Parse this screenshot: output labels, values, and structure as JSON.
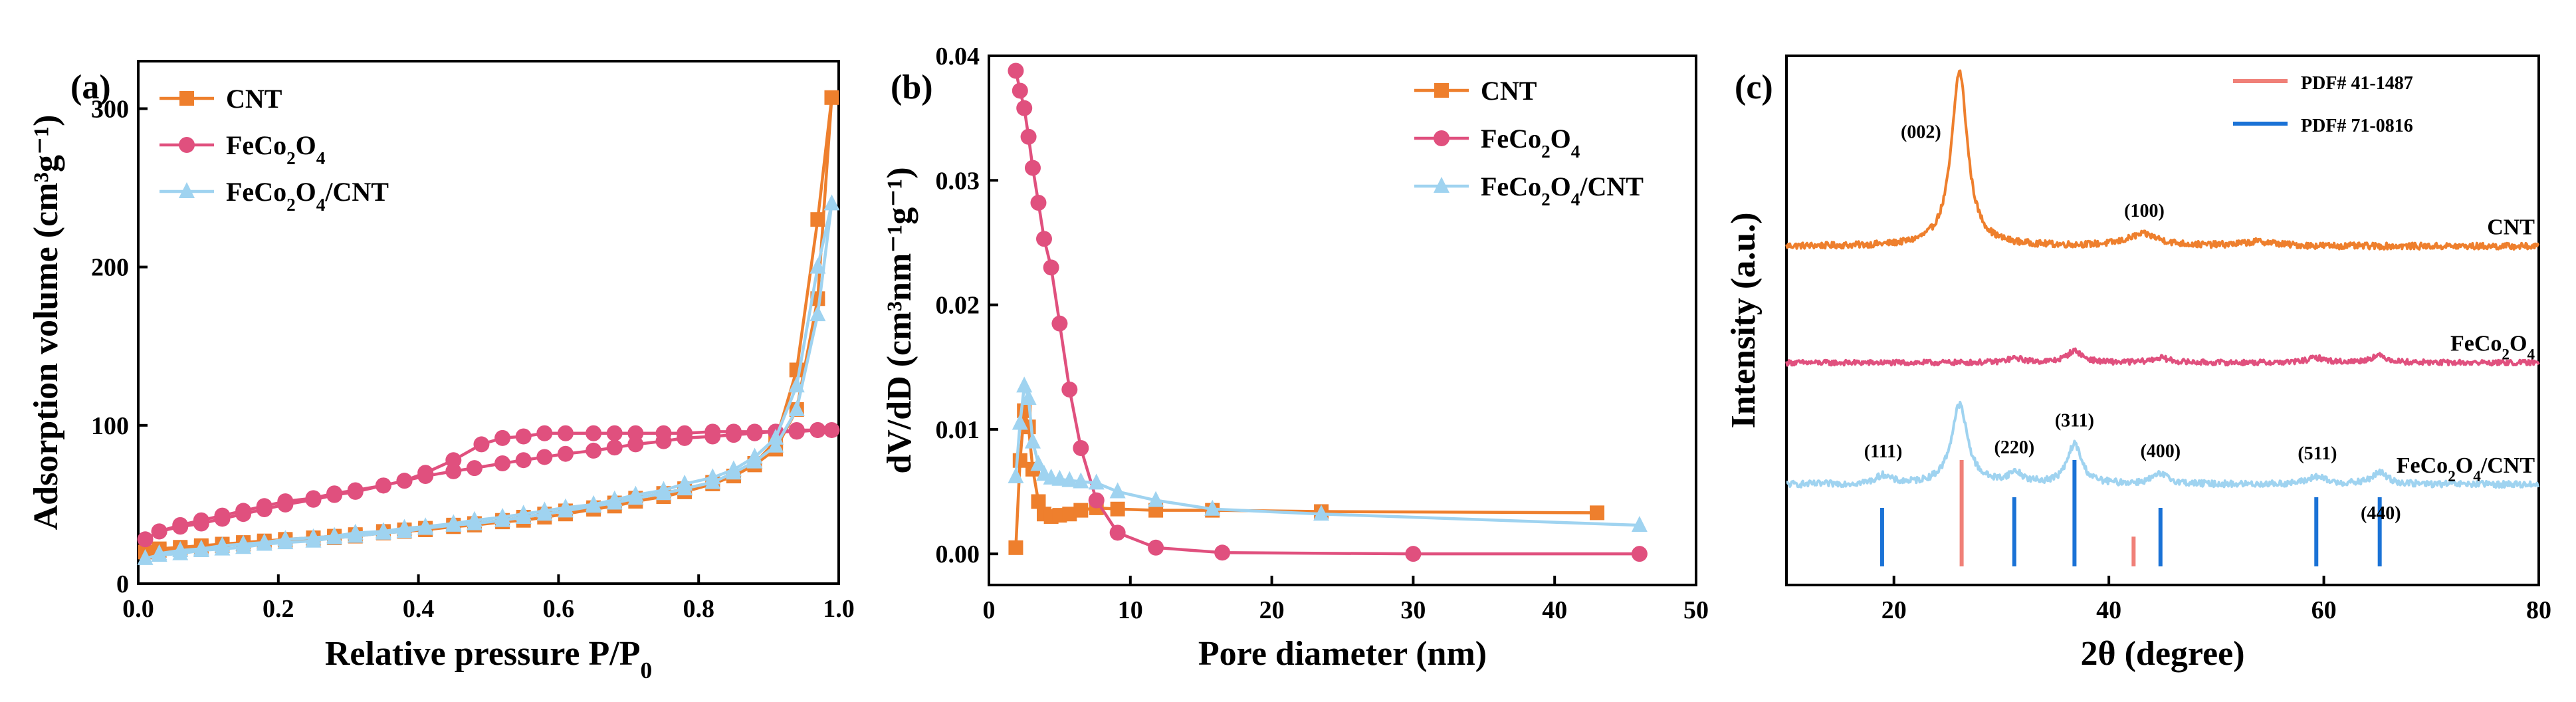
{
  "colors": {
    "cnt": "#ee7f2d",
    "fe": "#e0507e",
    "comp": "#9fd3f0",
    "pdf1": "#f08078",
    "pdf2": "#1a72d6"
  },
  "chart_data": [
    {
      "panel": "(a)",
      "type": "line",
      "xlabel_main": "Relative pressure P/P",
      "xlabel_sub": "0",
      "ylabel": "Adsorption volume (cm³g⁻¹)",
      "xlim": [
        0,
        1.0
      ],
      "ylim": [
        0,
        330
      ],
      "xticks": [
        0.0,
        0.2,
        0.4,
        0.6,
        0.8,
        1.0
      ],
      "xtick_labels": [
        "0.0",
        "0.2",
        "0.4",
        "0.6",
        "0.8",
        "1.0"
      ],
      "yticks": [
        0,
        100,
        200,
        300
      ],
      "ytick_labels": [
        "0",
        "100",
        "200",
        "300"
      ],
      "legend": {
        "position": "top-left",
        "entries": [
          {
            "key": "cnt",
            "main": "CNT",
            "parts": [
              {
                "t": "CNT",
                "sub": false
              }
            ]
          },
          {
            "key": "fe",
            "main": "FeCo2O4",
            "parts": [
              {
                "t": "FeCo",
                "sub": false
              },
              {
                "t": "2",
                "sub": true
              },
              {
                "t": "O",
                "sub": false
              },
              {
                "t": "4",
                "sub": true
              }
            ]
          },
          {
            "key": "comp",
            "main": "FeCo2O4/CNT",
            "parts": [
              {
                "t": "FeCo",
                "sub": false
              },
              {
                "t": "2",
                "sub": true
              },
              {
                "t": "O",
                "sub": false
              },
              {
                "t": "4",
                "sub": true
              },
              {
                "t": "/CNT",
                "sub": false
              }
            ]
          }
        ]
      },
      "series": [
        {
          "key": "cnt",
          "name": "CNT",
          "marker": "square",
          "x": [
            0.01,
            0.03,
            0.06,
            0.09,
            0.12,
            0.15,
            0.18,
            0.21,
            0.25,
            0.28,
            0.31,
            0.35,
            0.38,
            0.41,
            0.45,
            0.48,
            0.52,
            0.55,
            0.58,
            0.61,
            0.65,
            0.68,
            0.71,
            0.75,
            0.78,
            0.82,
            0.85,
            0.88,
            0.91,
            0.94,
            0.97,
            0.99,
            0.97,
            0.94,
            0.91,
            0.88,
            0.85,
            0.82,
            0.78,
            0.75,
            0.71,
            0.68,
            0.65,
            0.61,
            0.58,
            0.55,
            0.52,
            0.48,
            0.45,
            0.41,
            0.38,
            0.35,
            0.31,
            0.28,
            0.25,
            0.21,
            0.18,
            0.15,
            0.12,
            0.09,
            0.06,
            0.03
          ],
          "y": [
            20,
            21,
            22,
            23,
            24,
            25,
            26,
            27,
            28,
            29,
            30,
            32,
            33,
            34,
            36,
            37,
            39,
            40,
            42,
            44,
            47,
            49,
            52,
            55,
            58,
            63,
            68,
            75,
            85,
            110,
            180,
            307,
            230,
            135,
            90,
            76,
            68,
            64,
            60,
            57,
            54,
            51,
            48,
            46,
            44,
            42,
            40,
            38,
            37,
            35,
            34,
            33,
            31,
            30,
            29,
            28,
            27,
            26,
            25,
            24,
            23,
            22
          ]
        },
        {
          "key": "fe",
          "name": "FeCo2O4",
          "marker": "circle",
          "x": [
            0.01,
            0.03,
            0.06,
            0.09,
            0.12,
            0.15,
            0.18,
            0.21,
            0.25,
            0.28,
            0.31,
            0.35,
            0.38,
            0.41,
            0.45,
            0.48,
            0.52,
            0.55,
            0.58,
            0.61,
            0.65,
            0.68,
            0.71,
            0.75,
            0.78,
            0.82,
            0.85,
            0.88,
            0.91,
            0.94,
            0.97,
            0.99,
            0.97,
            0.94,
            0.91,
            0.88,
            0.85,
            0.82,
            0.78,
            0.75,
            0.71,
            0.68,
            0.65,
            0.61,
            0.58,
            0.55,
            0.52,
            0.49,
            0.45,
            0.41,
            0.38,
            0.35,
            0.31,
            0.28,
            0.25,
            0.21,
            0.18,
            0.15,
            0.12,
            0.09,
            0.06,
            0.03
          ],
          "y": [
            28,
            33,
            37,
            40,
            43,
            46,
            49,
            52,
            54,
            57,
            59,
            62,
            65,
            68,
            71,
            73,
            76,
            78,
            80,
            82,
            84,
            86,
            88,
            90,
            92,
            93,
            94,
            95,
            96,
            96,
            97,
            97,
            97,
            97,
            96,
            96,
            96,
            96,
            95,
            95,
            95,
            95,
            95,
            95,
            95,
            93,
            92,
            88,
            78,
            70,
            65,
            62,
            58,
            56,
            53,
            50,
            47,
            44,
            41,
            38,
            36,
            33
          ]
        },
        {
          "key": "comp",
          "name": "FeCo2O4/CNT",
          "marker": "triangle",
          "x": [
            0.01,
            0.03,
            0.06,
            0.09,
            0.12,
            0.15,
            0.18,
            0.21,
            0.25,
            0.28,
            0.31,
            0.35,
            0.38,
            0.41,
            0.45,
            0.48,
            0.52,
            0.55,
            0.58,
            0.61,
            0.65,
            0.68,
            0.71,
            0.75,
            0.78,
            0.82,
            0.85,
            0.88,
            0.91,
            0.94,
            0.97,
            0.99,
            0.97,
            0.94,
            0.91,
            0.88,
            0.85,
            0.82,
            0.78,
            0.75,
            0.71,
            0.68,
            0.65,
            0.61,
            0.58,
            0.55,
            0.52,
            0.48,
            0.45,
            0.41,
            0.38,
            0.35,
            0.31,
            0.28,
            0.25,
            0.21,
            0.18,
            0.15,
            0.12,
            0.09,
            0.06,
            0.03
          ],
          "y": [
            16,
            18,
            19,
            21,
            22,
            23,
            25,
            26,
            27,
            29,
            30,
            32,
            33,
            35,
            37,
            38,
            40,
            42,
            44,
            46,
            49,
            51,
            54,
            57,
            60,
            64,
            70,
            77,
            87,
            110,
            170,
            240,
            200,
            125,
            92,
            80,
            72,
            67,
            63,
            59,
            56,
            53,
            50,
            48,
            46,
            44,
            42,
            40,
            38,
            36,
            35,
            33,
            32,
            30,
            29,
            28,
            26,
            25,
            24,
            22,
            21,
            19
          ]
        }
      ]
    },
    {
      "panel": "(b)",
      "type": "line",
      "xlabel": "Pore diameter (nm)",
      "ylabel": "dV/dD (cm³nm⁻¹g⁻¹)",
      "xlim": [
        0,
        50
      ],
      "ylim": [
        -0.0025,
        0.04
      ],
      "xticks": [
        0,
        10,
        20,
        30,
        40,
        50
      ],
      "xtick_labels": [
        "0",
        "10",
        "20",
        "30",
        "40",
        "50"
      ],
      "yticks": [
        0.0,
        0.01,
        0.02,
        0.03,
        0.04
      ],
      "ytick_labels": [
        "0.00",
        "0.01",
        "0.02",
        "0.03",
        "0.04"
      ],
      "legend": {
        "position": "top-right",
        "entries": [
          {
            "key": "cnt",
            "main": "CNT",
            "parts": [
              {
                "t": "CNT",
                "sub": false
              }
            ]
          },
          {
            "key": "fe",
            "main": "FeCo2O4",
            "parts": [
              {
                "t": "FeCo",
                "sub": false
              },
              {
                "t": "2",
                "sub": true
              },
              {
                "t": "O",
                "sub": false
              },
              {
                "t": "4",
                "sub": true
              }
            ]
          },
          {
            "key": "comp",
            "main": "FeCo2O4/CNT",
            "parts": [
              {
                "t": "FeCo",
                "sub": false
              },
              {
                "t": "2",
                "sub": true
              },
              {
                "t": "O",
                "sub": false
              },
              {
                "t": "4",
                "sub": true
              },
              {
                "t": "/CNT",
                "sub": false
              }
            ]
          }
        ]
      },
      "series": [
        {
          "key": "cnt",
          "name": "CNT",
          "marker": "square",
          "x": [
            1.9,
            2.2,
            2.5,
            2.8,
            3.1,
            3.5,
            3.9,
            4.4,
            5.0,
            5.7,
            6.5,
            7.6,
            9.1,
            11.8,
            15.8,
            23.5,
            43.0
          ],
          "y": [
            0.0005,
            0.0075,
            0.0115,
            0.0102,
            0.0068,
            0.0042,
            0.0032,
            0.003,
            0.0031,
            0.0032,
            0.0035,
            0.0037,
            0.0036,
            0.0035,
            0.0035,
            0.0034,
            0.0033
          ]
        },
        {
          "key": "fe",
          "name": "FeCo2O4",
          "marker": "circle",
          "x": [
            1.9,
            2.2,
            2.5,
            2.8,
            3.1,
            3.5,
            3.9,
            4.4,
            5.0,
            5.7,
            6.5,
            7.6,
            9.1,
            11.8,
            16.5,
            30.0,
            46.0
          ],
          "y": [
            0.0388,
            0.0372,
            0.0358,
            0.0335,
            0.031,
            0.0282,
            0.0253,
            0.023,
            0.0185,
            0.0132,
            0.0085,
            0.0043,
            0.0017,
            0.0005,
            0.0001,
            0.0,
            0.0
          ]
        },
        {
          "key": "comp",
          "name": "FeCo2O4/CNT",
          "marker": "triangle",
          "x": [
            1.9,
            2.2,
            2.5,
            2.8,
            3.1,
            3.5,
            3.9,
            4.4,
            5.0,
            5.7,
            6.5,
            7.6,
            9.1,
            11.8,
            15.8,
            23.5,
            46.0
          ],
          "y": [
            0.0062,
            0.0105,
            0.0135,
            0.0125,
            0.009,
            0.0072,
            0.0064,
            0.0061,
            0.006,
            0.0059,
            0.0058,
            0.0057,
            0.005,
            0.0043,
            0.0036,
            0.0032,
            0.0023
          ]
        }
      ]
    },
    {
      "panel": "(c)",
      "type": "line",
      "xlabel": "2θ (degree)",
      "ylabel": "Intensity (a.u.)",
      "xlim": [
        10,
        80
      ],
      "ylim": [
        0,
        1
      ],
      "xticks": [
        20,
        40,
        60,
        80
      ],
      "xtick_labels": [
        "20",
        "40",
        "60",
        "80"
      ],
      "legend": {
        "position": "top-right",
        "entries": [
          {
            "key": "pdf1",
            "main": "PDF# 41-1487"
          },
          {
            "key": "pdf2",
            "main": "PDF# 71-0816"
          }
        ]
      },
      "series": [
        {
          "key": "cnt",
          "label": "CNT",
          "label_parts": [
            {
              "t": "CNT",
              "sub": false
            }
          ],
          "baseline": 0.64,
          "noise": 0.006,
          "peaks": [
            {
              "x": 26.1,
              "h": 0.33,
              "w": 0.9
            },
            {
              "x": 43.2,
              "h": 0.022,
              "w": 1.8
            },
            {
              "x": 54.0,
              "h": 0.008,
              "w": 2.0
            }
          ]
        },
        {
          "key": "fe",
          "label": "FeCo2O4",
          "label_parts": [
            {
              "t": "FeCo",
              "sub": false
            },
            {
              "t": "2",
              "sub": true
            },
            {
              "t": "O",
              "sub": false
            },
            {
              "t": "4",
              "sub": true
            }
          ],
          "baseline": 0.42,
          "noise": 0.005,
          "peaks": [
            {
              "x": 31.3,
              "h": 0.008,
              "w": 1.0
            },
            {
              "x": 36.8,
              "h": 0.022,
              "w": 0.9
            },
            {
              "x": 44.8,
              "h": 0.009,
              "w": 1.0
            },
            {
              "x": 59.3,
              "h": 0.009,
              "w": 1.0
            },
            {
              "x": 65.1,
              "h": 0.013,
              "w": 1.0
            }
          ]
        },
        {
          "key": "comp",
          "label": "FeCo2O4/CNT",
          "label_parts": [
            {
              "t": "FeCo",
              "sub": false
            },
            {
              "t": "2",
              "sub": true
            },
            {
              "t": "O",
              "sub": false
            },
            {
              "t": "4",
              "sub": true
            },
            {
              "t": "/CNT",
              "sub": false
            }
          ],
          "baseline": 0.19,
          "noise": 0.006,
          "peaks": [
            {
              "x": 19.0,
              "h": 0.016,
              "w": 0.8
            },
            {
              "x": 26.1,
              "h": 0.15,
              "w": 0.9
            },
            {
              "x": 31.3,
              "h": 0.02,
              "w": 0.8
            },
            {
              "x": 36.8,
              "h": 0.075,
              "w": 0.8
            },
            {
              "x": 44.8,
              "h": 0.018,
              "w": 1.0
            },
            {
              "x": 59.3,
              "h": 0.014,
              "w": 1.0
            },
            {
              "x": 65.2,
              "h": 0.022,
              "w": 0.9
            }
          ]
        }
      ],
      "reference_lines": [
        {
          "key": "pdf1",
          "x": 26.3,
          "h": 1.0
        },
        {
          "key": "pdf1",
          "x": 42.3,
          "h": 0.28
        },
        {
          "key": "pdf2",
          "x": 18.9,
          "h": 0.55
        },
        {
          "key": "pdf2",
          "x": 31.2,
          "h": 0.65
        },
        {
          "key": "pdf2",
          "x": 36.8,
          "h": 1.0
        },
        {
          "key": "pdf2",
          "x": 44.8,
          "h": 0.55
        },
        {
          "key": "pdf2",
          "x": 59.3,
          "h": 0.65
        },
        {
          "key": "pdf2",
          "x": 65.2,
          "h": 0.65
        }
      ],
      "peak_labels": [
        {
          "text": "(002)",
          "x": 26.1,
          "curve": "cnt"
        },
        {
          "text": "(100)",
          "x": 43.3,
          "curve": "cnt"
        },
        {
          "text": "(111)",
          "x": 19.0,
          "curve": "comp"
        },
        {
          "text": "(220)",
          "x": 31.2,
          "curve": "comp"
        },
        {
          "text": "(311)",
          "x": 36.8,
          "curve": "comp"
        },
        {
          "text": "(400)",
          "x": 44.8,
          "curve": "comp"
        },
        {
          "text": "(511)",
          "x": 59.4,
          "curve": "comp"
        },
        {
          "text": "(440)",
          "x": 65.3,
          "curve": "comp",
          "below": true
        }
      ]
    }
  ]
}
